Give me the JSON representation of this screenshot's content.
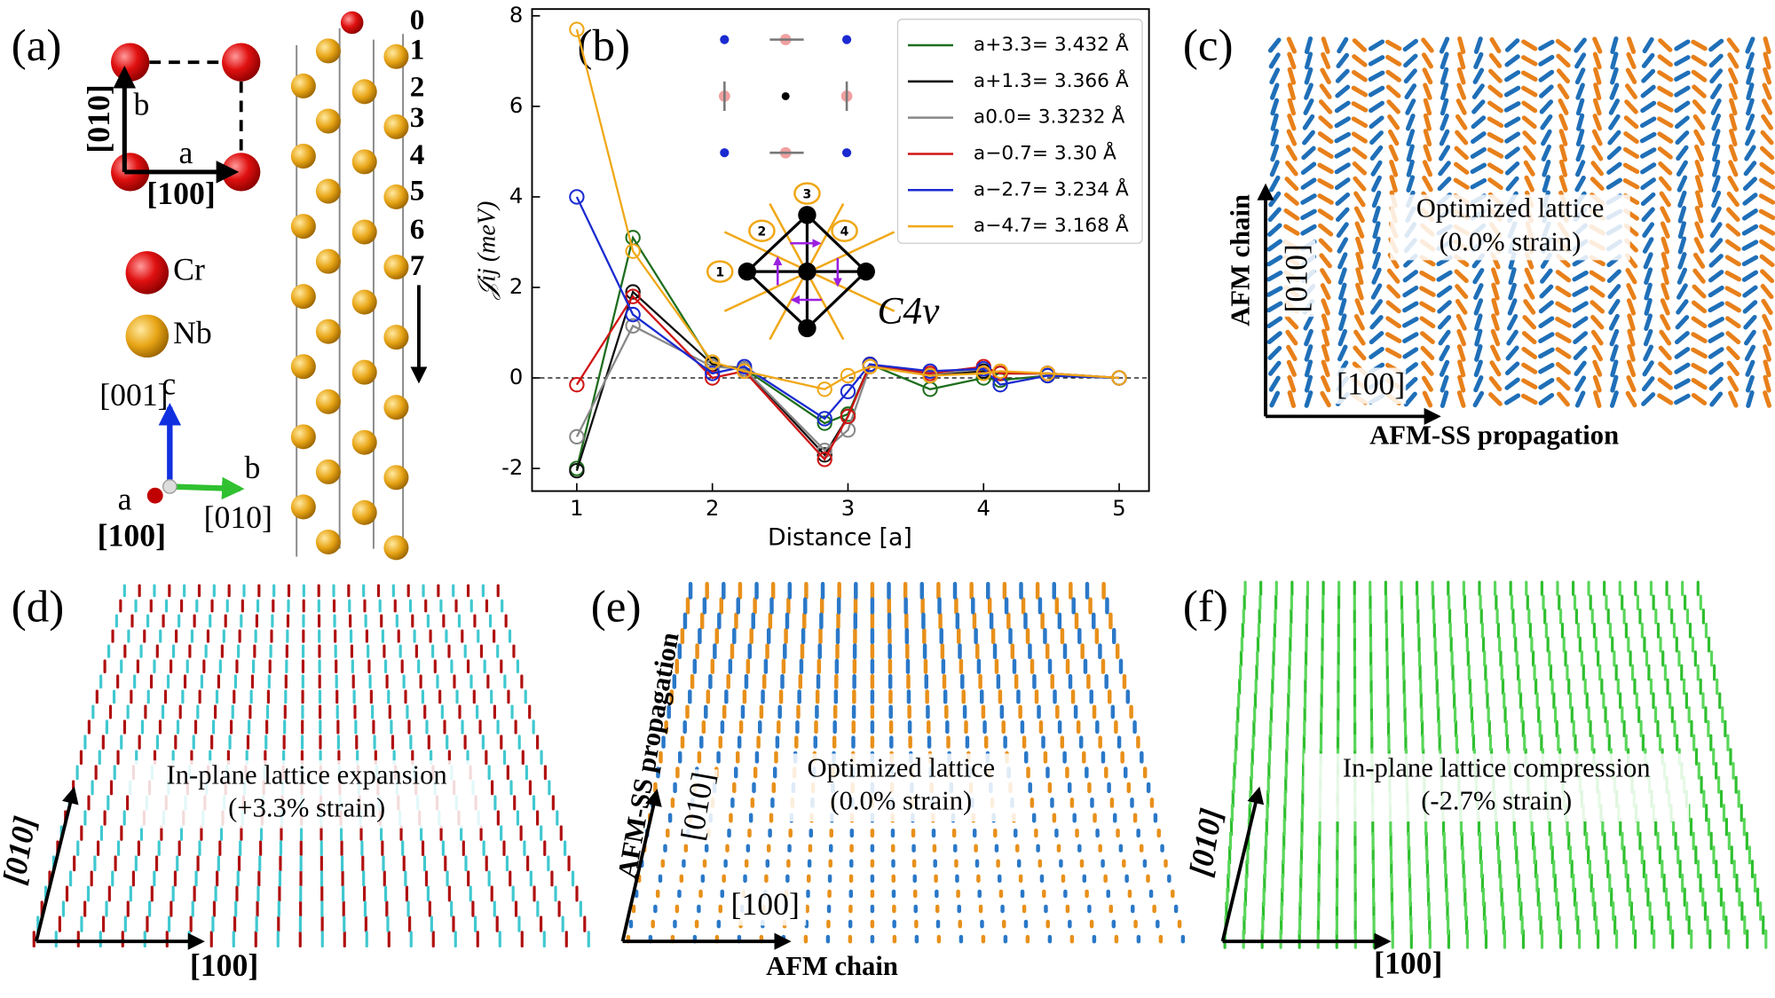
{
  "panel_a": {
    "label": "(a)",
    "cell_labels": [
      "[010]",
      "b",
      "a",
      "[100]"
    ],
    "species": [
      "Cr",
      "Nb"
    ],
    "axes_labels": [
      "[001]",
      "c",
      "b",
      "a",
      "[100]",
      "[010]"
    ],
    "layers": [
      "0",
      "1",
      "2",
      "3",
      "4",
      "5",
      "6",
      "7"
    ]
  },
  "chart_data": {
    "type": "line",
    "label": "(b)",
    "xlabel": "Distance [a]",
    "ylabel": "𝒥ij (meV)",
    "x": [
      1,
      1.414,
      2,
      2.236,
      2.828,
      3,
      3.162,
      3.606,
      4,
      4.123,
      4.472,
      5
    ],
    "xlim": [
      0.67,
      5.22
    ],
    "ylim": [
      -2.5,
      8.15
    ],
    "xticks": [
      1,
      2,
      3,
      4,
      5
    ],
    "yticks": [
      -2,
      0,
      2,
      4,
      6,
      8
    ],
    "zero_line": true,
    "legend": "upper right",
    "series": [
      {
        "name": "a+3.3= 3.432 Å",
        "color": "#1e6e1e",
        "values": [
          -2.0,
          3.1,
          0.3,
          0.2,
          -1.0,
          -0.8,
          0.3,
          -0.25,
          0.0,
          -0.05,
          0.05,
          0.0
        ]
      },
      {
        "name": "a+1.3= 3.366 Å",
        "color": "#111111",
        "values": [
          -2.05,
          1.9,
          0.3,
          0.2,
          -1.7,
          -0.85,
          0.3,
          0.05,
          0.15,
          0.1,
          0.1,
          0.0
        ]
      },
      {
        "name": "a0.0= 3.3232 Å",
        "color": "#888888",
        "values": [
          -1.3,
          1.15,
          0.25,
          0.2,
          -1.6,
          -1.15,
          0.25,
          0.1,
          0.2,
          0.1,
          0.1,
          0.0
        ]
      },
      {
        "name": "a−0.7= 3.30 Å",
        "color": "#d01515",
        "values": [
          -0.15,
          1.8,
          0.0,
          0.15,
          -1.8,
          -0.85,
          0.3,
          0.1,
          0.25,
          0.1,
          0.1,
          0.0
        ]
      },
      {
        "name": "a−2.7= 3.234 Å",
        "color": "#1a2ad0",
        "values": [
          4.0,
          1.4,
          0.1,
          0.25,
          -0.9,
          -0.3,
          0.3,
          0.15,
          0.2,
          -0.15,
          0.05,
          0.0
        ]
      },
      {
        "name": "a−4.7= 3.168 Å",
        "color": "#f0a818",
        "values": [
          7.7,
          2.8,
          0.35,
          0.15,
          -0.25,
          0.05,
          0.25,
          0.05,
          0.1,
          0.15,
          0.1,
          0.0
        ]
      }
    ],
    "inset_labels": [
      "1",
      "2",
      "3",
      "4"
    ],
    "inset_symbol": "C4v"
  },
  "panel_c": {
    "label": "(c)",
    "y_axis": "AFM chain",
    "y_dir": "[010]",
    "title": "Optimized lattice",
    "subtitle": "(0.0% strain)",
    "x_dir": "[100]",
    "x_axis": "AFM-SS propagation"
  },
  "panel_d": {
    "label": "(d)",
    "title": "In-plane lattice expansion",
    "subtitle": "(+3.3% strain)",
    "y_dir": "[010]",
    "x_dir": "[100]"
  },
  "panel_e": {
    "label": "(e)",
    "y_axis": "AFM-SS propagation",
    "y_dir": "[010]",
    "title": "Optimized lattice",
    "subtitle": "(0.0% strain)",
    "x_dir": "[100]",
    "x_axis": "AFM chain"
  },
  "panel_f": {
    "label": "(f)",
    "title": "In-plane lattice compression",
    "subtitle": "(-2.7% strain)",
    "y_dir": "[010]",
    "x_dir": "[100]"
  }
}
